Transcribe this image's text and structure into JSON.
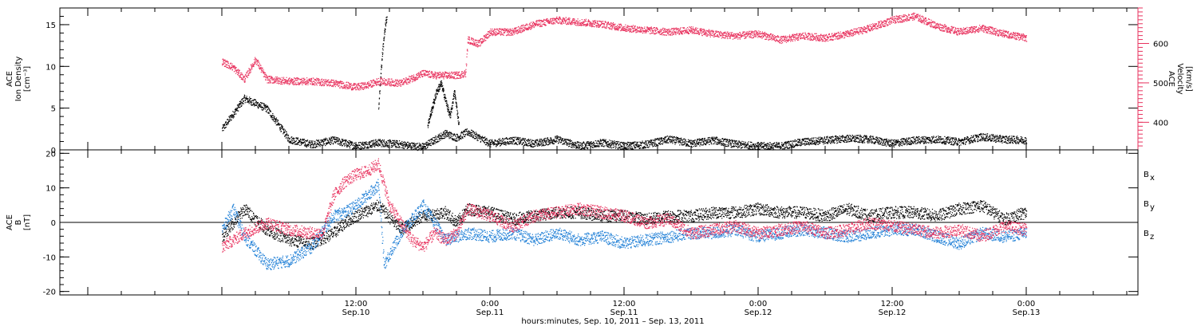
{
  "chart_data": [
    {
      "type": "scatter",
      "panel": "top",
      "left_axis": {
        "label": [
          "ACE",
          "Ion Density",
          "[cm⁻³]"
        ],
        "ylim": [
          0,
          17
        ],
        "ticks": [
          0,
          5,
          10,
          15
        ],
        "tick_labels": [
          "0",
          "5",
          "10",
          "15"
        ],
        "color": "#000000"
      },
      "right_axis": {
        "label": [
          "ACE",
          "Velocity",
          "[km/s]"
        ],
        "ylim": [
          330,
          690
        ],
        "ticks": [
          400,
          500,
          600
        ],
        "tick_labels": [
          "400",
          "500",
          "600"
        ],
        "color": "#e8335f"
      },
      "series": [
        {
          "axis": "left",
          "color": "#000000",
          "x": [
            0,
            2,
            4,
            6,
            8,
            10,
            12,
            14,
            16,
            17,
            18,
            20,
            21,
            22,
            24,
            26,
            28,
            30,
            32,
            34,
            36,
            38,
            40,
            42,
            44,
            46,
            48,
            50,
            52,
            54,
            56,
            58,
            60,
            62,
            64,
            66,
            68,
            70,
            72
          ],
          "y": [
            2.5,
            6.2,
            5.0,
            1.3,
            0.7,
            1.2,
            0.5,
            0.9,
            0.7,
            0.5,
            0.4,
            2.0,
            1.5,
            2.2,
            0.8,
            1.2,
            0.8,
            1.3,
            0.5,
            0.9,
            0.5,
            0.7,
            1.3,
            0.8,
            1.2,
            0.7,
            0.5,
            0.5,
            1.0,
            1.2,
            1.4,
            1.3,
            0.8,
            1.2,
            1.3,
            1.0,
            1.6,
            1.3,
            1.2
          ]
        },
        {
          "axis": "left",
          "color": "#000000",
          "x": [
            14.0,
            14.15,
            14.3,
            14.45,
            14.6,
            14.75
          ],
          "y": [
            5,
            8,
            11,
            13,
            15,
            16
          ]
        },
        {
          "axis": "left",
          "color": "#000000",
          "x": [
            18.4,
            18.8,
            19.2,
            19.6,
            20.0,
            20.4,
            20.8,
            21.2
          ],
          "y": [
            3,
            5,
            7,
            8,
            6,
            4,
            7,
            3
          ]
        },
        {
          "axis": "right",
          "color": "#e8335f",
          "x": [
            0,
            1,
            2,
            3,
            4,
            6,
            8,
            10,
            12,
            13,
            14,
            16,
            18,
            19,
            20,
            21,
            21.8,
            22,
            23,
            24,
            26,
            28,
            30,
            32,
            34,
            36,
            38,
            40,
            42,
            44,
            46,
            48,
            50,
            52,
            54,
            56,
            58,
            60,
            62,
            64,
            66,
            68,
            70,
            72
          ],
          "y": [
            555,
            540,
            510,
            560,
            510,
            505,
            505,
            500,
            490,
            495,
            505,
            500,
            525,
            520,
            520,
            520,
            525,
            610,
            600,
            630,
            630,
            650,
            660,
            655,
            650,
            640,
            635,
            630,
            635,
            625,
            620,
            625,
            610,
            620,
            615,
            625,
            640,
            660,
            670,
            645,
            630,
            640,
            625,
            615
          ]
        }
      ]
    },
    {
      "type": "scatter",
      "panel": "bottom",
      "left_axis": {
        "label": [
          "ACE",
          "B",
          "[nT]"
        ],
        "ylim": [
          -21,
          21
        ],
        "ticks": [
          -20,
          -10,
          0,
          10,
          20
        ],
        "tick_labels": [
          "-20",
          "-10",
          "0",
          "10",
          "20"
        ]
      },
      "series": [
        {
          "name": "Bx",
          "color": "#000000",
          "x": [
            0,
            2,
            4,
            6,
            8,
            10,
            11,
            12,
            14,
            16,
            18,
            20,
            21,
            22,
            24,
            26,
            28,
            30,
            32,
            34,
            36,
            38,
            40,
            42,
            44,
            46,
            48,
            50,
            52,
            54,
            56,
            58,
            60,
            62,
            64,
            66,
            68,
            70,
            72
          ],
          "y": [
            -4,
            4,
            -2,
            -5,
            -6,
            -3,
            0,
            2,
            5,
            -2,
            2,
            3,
            0,
            4,
            3,
            1,
            2,
            3,
            3,
            2,
            2,
            1,
            2,
            2,
            3,
            3,
            4,
            3,
            3,
            2,
            4,
            2,
            3,
            3,
            2,
            4,
            5,
            1,
            3
          ]
        },
        {
          "name": "By",
          "color": "#1f7fd6",
          "x": [
            0,
            1,
            2,
            4,
            6,
            8,
            10,
            11,
            12,
            14,
            14.5,
            16,
            18,
            20,
            22,
            24,
            26,
            28,
            30,
            32,
            34,
            36,
            38,
            40,
            42,
            44,
            46,
            48,
            50,
            52,
            54,
            56,
            58,
            60,
            62,
            64,
            66,
            68,
            70,
            72
          ],
          "y": [
            -2,
            4,
            -4,
            -12,
            -11,
            -7,
            2,
            3,
            5,
            11,
            -12,
            -3,
            5,
            -5,
            -3,
            -4,
            -3,
            -5,
            -3,
            -5,
            -4,
            -6,
            -5,
            -4,
            -3,
            -3,
            -2,
            -4,
            -3,
            -2,
            -3,
            -4,
            -3,
            -2,
            -2,
            -4,
            -6,
            -3,
            -4,
            -3
          ]
        },
        {
          "name": "Bz",
          "color": "#e8335f",
          "x": [
            0,
            2,
            4,
            6,
            8,
            9,
            10,
            11,
            12,
            13,
            14,
            15,
            16,
            17,
            18,
            19,
            20,
            21,
            22,
            24,
            26,
            28,
            30,
            32,
            34,
            36,
            38,
            40,
            42,
            44,
            46,
            48,
            50,
            52,
            54,
            56,
            58,
            60,
            62,
            64,
            66,
            68,
            70,
            72
          ],
          "y": [
            -7,
            -3,
            0,
            -2,
            -3,
            -3,
            8,
            12,
            14,
            15,
            17,
            5,
            0,
            -5,
            -7,
            -3,
            -5,
            -3,
            4,
            2,
            -1,
            2,
            3,
            4,
            3,
            2,
            0,
            1,
            -3,
            -2,
            -1,
            -3,
            -2,
            -1,
            -3,
            -2,
            0,
            -1,
            -2,
            -3,
            -2,
            -4,
            -1,
            -2
          ]
        }
      ],
      "legend": [
        {
          "label": "B",
          "sub": "x",
          "color": "#000000"
        },
        {
          "label": "B",
          "sub": "y",
          "color": "#1f7fd6"
        },
        {
          "label": "B",
          "sub": "z",
          "color": "#e8335f"
        }
      ]
    }
  ],
  "x_axis": {
    "range": [
      -14.5,
      82
    ],
    "major_ticks": [
      {
        "value": 12,
        "time": "12:00",
        "date": "Sep.10"
      },
      {
        "value": 24,
        "time": "0:00",
        "date": "Sep.11"
      },
      {
        "value": 36,
        "time": "12:00",
        "date": "Sep.11"
      },
      {
        "value": 48,
        "time": "0:00",
        "date": "Sep.12"
      },
      {
        "value": 60,
        "time": "12:00",
        "date": "Sep.12"
      },
      {
        "value": 72,
        "time": "0:00",
        "date": "Sep.13"
      }
    ],
    "title": "hours:minutes, Sep. 10, 2011 – Sep. 13, 2011"
  }
}
